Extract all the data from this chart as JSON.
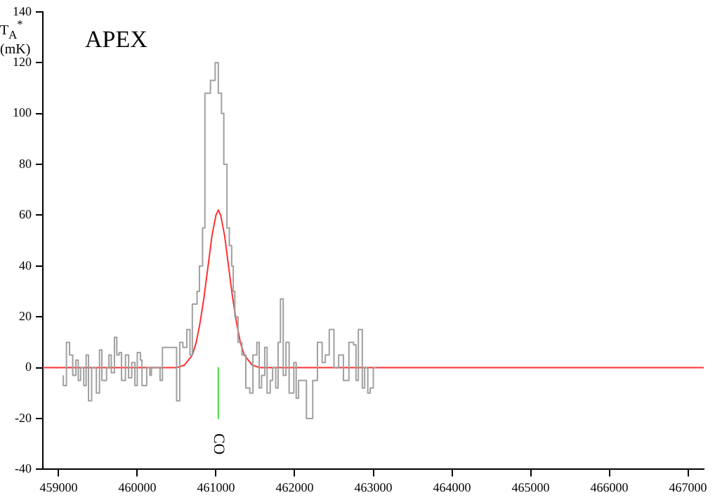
{
  "chart_data": {
    "type": "step",
    "title": "APEX",
    "ylabel": "T$_{A}$$^{*}$ (mK)",
    "xlim": [
      458800,
      467200
    ],
    "xticks": [
      459000,
      460000,
      461000,
      462000,
      463000,
      464000,
      465000,
      466000,
      467000
    ],
    "ylim": [
      -40,
      140
    ],
    "yticks": [
      -40,
      -20,
      0,
      20,
      40,
      60,
      80,
      100,
      120,
      140
    ],
    "grid": false,
    "legend": false,
    "marker": "none",
    "series": [
      {
        "color": "#a0a0a0",
        "x": [
          459060,
          459100,
          459140,
          459180,
          459220,
          459250,
          459280,
          459320,
          459350,
          459380,
          459420,
          459480,
          459520,
          459550,
          459610,
          459640,
          459670,
          459710,
          459740,
          459770,
          459800,
          459850,
          459890,
          459930,
          459970,
          460000,
          460040,
          460060,
          460120,
          460160,
          460180,
          460290,
          460320,
          460500,
          460540,
          460580,
          460630,
          460670,
          460700,
          460760,
          460790,
          460830,
          460860,
          460930,
          460990,
          461030,
          461070,
          461100,
          461140,
          461170,
          461200,
          461220,
          461240,
          461280,
          461330,
          461380,
          461430,
          461470,
          461520,
          461550,
          461580,
          461620,
          461650,
          461690,
          461720,
          461760,
          461790,
          461820,
          461855,
          461890,
          461930,
          461990,
          462020,
          462050,
          462090,
          462150,
          462230,
          462290,
          462350,
          462390,
          462440,
          462500,
          462560,
          462620,
          462690,
          462750,
          462780,
          462810,
          462860,
          462890,
          462930,
          462960,
          463000,
          463040
        ],
        "values": [
          -3,
          -7,
          10,
          5,
          -3,
          3,
          -5,
          0,
          -7,
          5,
          -13,
          0,
          -10,
          7,
          -5,
          0,
          5,
          -2,
          12,
          5,
          6,
          -5,
          5,
          -4,
          2,
          -7,
          6,
          3,
          -7,
          0,
          -3,
          0,
          -5,
          8,
          -13,
          10,
          8,
          15,
          5,
          25,
          30,
          40,
          55,
          108,
          113,
          120,
          108,
          100,
          80,
          55,
          48,
          40,
          30,
          20,
          10,
          5,
          -8,
          -10,
          5,
          10,
          -8,
          -3,
          8,
          -10,
          -5,
          0,
          -8,
          10,
          27,
          -3,
          10,
          -10,
          2,
          -12,
          -5,
          -5,
          -20,
          -5,
          10,
          2,
          5,
          15,
          0,
          5,
          -5,
          10,
          9,
          -5,
          15,
          -8,
          0,
          -10,
          -8,
          0
        ]
      },
      {
        "type": "line",
        "color": "#ff3030",
        "x": [
          458800,
          460500,
          460600,
          460700,
          460750,
          460800,
          460850,
          460900,
          460950,
          461000,
          461030,
          461060,
          461110,
          461160,
          461210,
          461260,
          461310,
          461360,
          461460,
          461560,
          467200
        ],
        "values": [
          0,
          0,
          1,
          5,
          10,
          18,
          28,
          40,
          52,
          60,
          62,
          60,
          52,
          40,
          28,
          18,
          10,
          5,
          1,
          0,
          0
        ]
      },
      {
        "type": "line",
        "color": "#40e040",
        "x": [
          461030,
          461030
        ],
        "values": [
          0,
          -20
        ]
      }
    ],
    "annotations": [
      "CO"
    ]
  }
}
